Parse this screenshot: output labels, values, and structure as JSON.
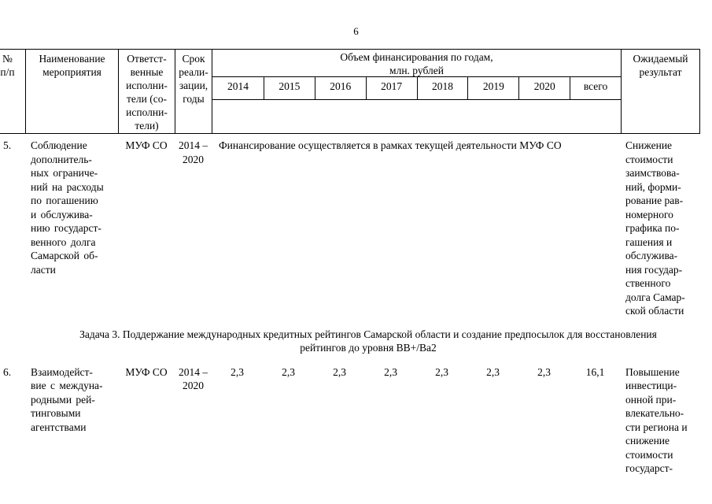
{
  "page_number": "6",
  "header": {
    "num": "№\nп/п",
    "name": "Наименование\nмероприятия",
    "responsible": "Ответст-\nвенные\nисполни-\nтели (со-\nисполни-\nтели)",
    "period": "Срок\nреали-\nзации,\nгоды",
    "financing_title": "Объем финансирования по годам,\nмлн. рублей",
    "years": [
      "2014",
      "2015",
      "2016",
      "2017",
      "2018",
      "2019",
      "2020",
      "всего"
    ],
    "result": "Ожидаемый\nрезультат"
  },
  "rows": [
    {
      "num": "5.",
      "name": "Соблюдение\nдополнитель-\nных ограниче-\nний на расходы\nпо погашению\nи обслужива-\nнию государст-\nвенного долга\nСамарской об-\nласти",
      "responsible": "МУФ СО",
      "period": "2014 –\n2020",
      "financing_note": "Финансирование осуществляется в рамках текущей деятельности МУФ СО",
      "result": "Снижение\nстоимости\nзаимствова-\nний, форми-\nрование рав-\nномерного\nграфика по-\nгашения и\nобслужива-\nния государ-\nственного\nдолга Самар-\nской области"
    },
    {
      "num": "6.",
      "name": "Взаимодейст-\nвие с междуна-\nродными рей-\nтинговыми\nагентствами",
      "responsible": "МУФ СО",
      "period": "2014 –\n2020",
      "values": [
        "2,3",
        "2,3",
        "2,3",
        "2,3",
        "2,3",
        "2,3",
        "2,3",
        "16,1"
      ],
      "result": "Повышение\nинвестици-\nонной при-\nвлекательно-\nсти региона и\nснижение\nстоимости\nгосударст-"
    }
  ],
  "section_heading": "Задача 3. Поддержание международных кредитных рейтингов Самарской области и создание предпосылок для восстановления\nрейтингов до уровня BB+/Ba2"
}
